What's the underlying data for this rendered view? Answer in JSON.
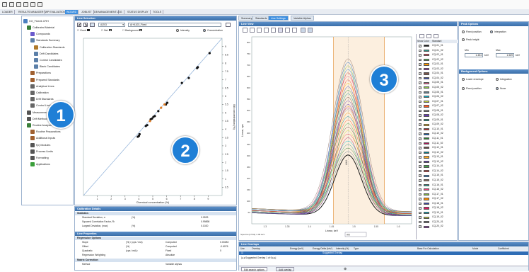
{
  "menu": [
    "LOADER",
    "RESULTS MANAGER",
    "MIP EVALUATION",
    "WIZARD",
    "JOBLIST",
    "DB MANAGEMENT",
    "LOG",
    "STATUS DISPLAY",
    "TOOLS"
  ],
  "tree": {
    "root": "CO_Fixed1.CRH",
    "items": [
      {
        "label": "Calibrated Material",
        "indent": 1,
        "color": "#3a7f3a"
      },
      {
        "label": "Compounds",
        "indent": 2,
        "color": "#6a5acd"
      },
      {
        "label": "Standards Summary",
        "indent": 2,
        "color": "#5b7fa8"
      },
      {
        "label": "Calibration Standards",
        "indent": 3,
        "color": "#b07a2a"
      },
      {
        "label": "Drift Candidates",
        "indent": 3,
        "color": "#5b7fa8"
      },
      {
        "label": "Control Candidates",
        "indent": 3,
        "color": "#5b7fa8"
      },
      {
        "label": "Blank Candidates",
        "indent": 3,
        "color": "#5b7fa8"
      },
      {
        "label": "Preparations",
        "indent": 2,
        "color": "#a06030"
      },
      {
        "label": "Prepared Standards",
        "indent": 2,
        "color": "#a06030"
      },
      {
        "label": "Analytical Lines",
        "indent": 2,
        "color": "#666"
      },
      {
        "label": "Calibration",
        "indent": 2,
        "color": "#666"
      },
      {
        "label": "Drift Standards",
        "indent": 2,
        "color": "#666"
      },
      {
        "label": "Control Limits",
        "indent": 2,
        "color": "#666"
      },
      {
        "label": "Measurement Methods",
        "indent": 1,
        "color": "#555"
      },
      {
        "label": "Drift Methods",
        "indent": 1,
        "color": "#555"
      },
      {
        "label": "Routine Analysis",
        "indent": 1,
        "color": "#3a7f3a"
      },
      {
        "label": "Routine Preparations",
        "indent": 2,
        "color": "#a06030"
      },
      {
        "label": "Additional Inputs",
        "indent": 2,
        "color": "#a06030"
      },
      {
        "label": "f(x) Modules",
        "indent": 2,
        "color": "#555"
      },
      {
        "label": "Process Limits",
        "indent": 2,
        "color": "#555"
      },
      {
        "label": "Formatting",
        "indent": 2,
        "color": "#555"
      },
      {
        "label": "Applications",
        "indent": 2,
        "color": "#3a9f3a"
      }
    ]
  },
  "badges": [
    "1",
    "2",
    "3"
  ],
  "line_selection": {
    "title": "Line Selection",
    "line_select": "AI203",
    "line_code": "AI+A103_Fixed",
    "legend": [
      "Good",
      "Net",
      "Background"
    ],
    "intensity_label": "Intensity",
    "concentration_label": "Concentration"
  },
  "chart_data": {
    "type": "scatter",
    "title": "",
    "xlabel": "Chemical concentration (%)",
    "ylabel": "Bill concentration (%)",
    "xlim": [
      0,
      10
    ],
    "ylim": [
      0,
      9.5
    ],
    "x_ticks": [
      1,
      2,
      3,
      4,
      5,
      6,
      7,
      8,
      9
    ],
    "y_ticks": [
      0.5,
      1.0,
      1.5,
      2.0,
      2.5,
      3.0,
      3.5,
      4.0,
      4.5,
      5.0,
      5.5,
      6.0,
      6.5,
      7.0,
      7.5,
      8.0,
      8.5,
      9.0
    ],
    "series": [
      {
        "color": "#111111",
        "x": [
          3.92,
          4.0,
          4.05,
          4.5,
          4.6,
          4.85,
          4.95,
          5.05,
          5.15,
          5.4,
          5.95,
          6.05,
          7.1,
          7.6,
          8.2,
          8.25,
          9.1
        ],
        "y": [
          3.55,
          3.6,
          3.7,
          4.2,
          4.25,
          4.6,
          4.65,
          4.75,
          4.8,
          5.1,
          5.5,
          5.6,
          6.8,
          7.1,
          7.7,
          7.75,
          8.6
        ]
      },
      {
        "color": "#e07a20",
        "x": [
          4.8,
          5.6,
          5.85
        ],
        "y": [
          4.5,
          5.3,
          5.5
        ]
      }
    ]
  },
  "calibration_details": {
    "title": "Calibration Details",
    "section": "Statistics",
    "rows": [
      {
        "name": "Standard Deviation, σ",
        "unit": "(%)",
        "value": "0.0533"
      },
      {
        "name": "Squared Correlation Factor, R²",
        "unit": "",
        "value": "0.99898"
      },
      {
        "name": "Largest Deviation, |max|",
        "unit": "(%)",
        "value": "0.1020"
      }
    ]
  },
  "line_properties": {
    "title": "Line Properties",
    "section": "Regression Options",
    "rows": [
      {
        "name": "Slope",
        "unit": "(%) / (cps / mA)",
        "type": "Computed",
        "value": "0.00283"
      },
      {
        "name": "Offset",
        "unit": "(%)",
        "type": "Computed",
        "value": "-0.6076"
      },
      {
        "name": "Quadratic",
        "unit": "(cps / mA)²",
        "type": "Fixed",
        "value": "0"
      },
      {
        "name": "Regression Weighting",
        "unit": "",
        "type": "Absolute",
        "value": ""
      }
    ],
    "section2": "Matrix Correction",
    "method_label": "Method",
    "method_value": "Variable alphas"
  },
  "right_tabs": [
    "Summary",
    "Standards",
    "Line Settings",
    "Variable Alphas"
  ],
  "line_view": {
    "title": "Line View",
    "ylabel": "Linear, cps",
    "xlabel": "Linear, keV",
    "spectra_label": "Spectra (27/32) 1.08 keV",
    "peak_label": "AlKA",
    "readout_label": "AlK",
    "x_ticks": [
      "1.3",
      "1.35",
      "1.4",
      "1.45",
      "1.5",
      "1.55",
      "1.6"
    ],
    "y_ticks": [
      "50",
      "100",
      "150",
      "200",
      "250",
      "300",
      "350",
      "400",
      "450",
      "500",
      "550",
      "600",
      "650",
      "700",
      "750",
      "800"
    ]
  },
  "legend_table": {
    "headers": [
      "Show",
      "Color",
      "Standard"
    ],
    "items": [
      {
        "name": "CQ-01_01",
        "color": "#1a1a1a",
        "show": true
      },
      {
        "name": "CQ-01_02",
        "color": "#2a9d8f",
        "show": true
      },
      {
        "name": "CQ-02_01",
        "color": "#e63946",
        "show": true
      },
      {
        "name": "CQ-02_02",
        "color": "#4caf50",
        "show": true
      },
      {
        "name": "CQ-03_01",
        "color": "#ff9800",
        "show": true
      },
      {
        "name": "CQ-03_02",
        "color": "#9c27b0",
        "show": true
      },
      {
        "name": "CQ-04_01",
        "color": "#795548",
        "show": true
      },
      {
        "name": "CQ-04_02",
        "color": "#3f51b5",
        "show": true
      },
      {
        "name": "CQ-05_01",
        "color": "#f06292",
        "show": true
      },
      {
        "name": "CQ-05_02",
        "color": "#8bc34a",
        "show": true
      },
      {
        "name": "CQ-06_01",
        "color": "#607d8b",
        "show": true
      },
      {
        "name": "CQ-06_02",
        "color": "#00bcd4",
        "show": true
      },
      {
        "name": "CQ-07_01",
        "color": "#cddc39",
        "show": true
      },
      {
        "name": "CQ-07_02",
        "color": "#ff5722",
        "show": true
      },
      {
        "name": "CQ-08_01",
        "color": "#9e9e9e",
        "show": true
      },
      {
        "name": "CQ-08_02",
        "color": "#673ab7",
        "show": true
      },
      {
        "name": "CQ-09_01",
        "color": "#009688",
        "show": true
      },
      {
        "name": "CQ-09_02",
        "color": "#ffc107",
        "show": true
      },
      {
        "name": "CQ-10_01",
        "color": "#c62828",
        "show": true
      },
      {
        "name": "CQ-10_02",
        "color": "#1565c0",
        "show": true
      },
      {
        "name": "CQ-11_01",
        "color": "#2e7d32",
        "show": true
      },
      {
        "name": "CQ-11_02",
        "color": "#ad1457",
        "show": true
      },
      {
        "name": "CQ-12_01",
        "color": "#6d4c41",
        "show": true
      },
      {
        "name": "CQ-12_02",
        "color": "#00838f",
        "show": true
      },
      {
        "name": "CQ-13_01",
        "color": "#f9a825",
        "show": true
      },
      {
        "name": "CQ-13_02",
        "color": "#5e35b1",
        "show": true
      },
      {
        "name": "CQ-14_01",
        "color": "#43a047",
        "show": true
      },
      {
        "name": "CQ-14_02",
        "color": "#e53935",
        "show": true
      },
      {
        "name": "CQ-15_01",
        "color": "#1e88e5",
        "show": true
      },
      {
        "name": "CQ-15_02",
        "color": "#8d6e63",
        "show": true
      },
      {
        "name": "CQ-16_01",
        "color": "#26a69a",
        "show": true
      },
      {
        "name": "CQ-16_02",
        "color": "#ec407a",
        "show": true
      },
      {
        "name": "CQ-17_01",
        "color": "#7cb342",
        "show": true
      },
      {
        "name": "CQ-17_02",
        "color": "#fb8c00",
        "show": true
      },
      {
        "name": "CQ-18_01",
        "color": "#3949ab",
        "show": true
      },
      {
        "name": "CQ-18_02",
        "color": "#d81b60",
        "show": true
      },
      {
        "name": "CQ-19_01",
        "color": "#00acc1",
        "show": true
      },
      {
        "name": "CQ-19_02",
        "color": "#c0ca33",
        "show": true
      },
      {
        "name": "CQ-20_01",
        "color": "#757575",
        "show": true
      },
      {
        "name": "CQ-20_02",
        "color": "#8e24aa",
        "show": true
      }
    ]
  },
  "peak_options": {
    "title": "Peak Options",
    "fixed_position": "Fixed position",
    "integration": "Integration",
    "peak_height": "Peak height",
    "min_label": "Min",
    "max_label": "Max",
    "min_value": "1.454",
    "max_value": "1.569",
    "unit": "keV"
  },
  "background_options": {
    "title": "Background Options",
    "lower_envelope": "Lower envelope",
    "integration": "Integration",
    "fixed_position": "Fixed position",
    "none": "None"
  },
  "line_overlaps": {
    "title": "Line Overlaps",
    "headers": [
      "Use",
      "Overlap",
      "Energy (keV)",
      "Energy Delta (keV)",
      "Intensity (%)",
      "Type",
      "Base For Calculation",
      "Mode",
      "Coefficient"
    ],
    "row_selected": "Suggested Overlap",
    "pager": "Suggested Overlap 1 of 6",
    "tabs": [
      "Edit search options",
      "Add overlap"
    ]
  }
}
